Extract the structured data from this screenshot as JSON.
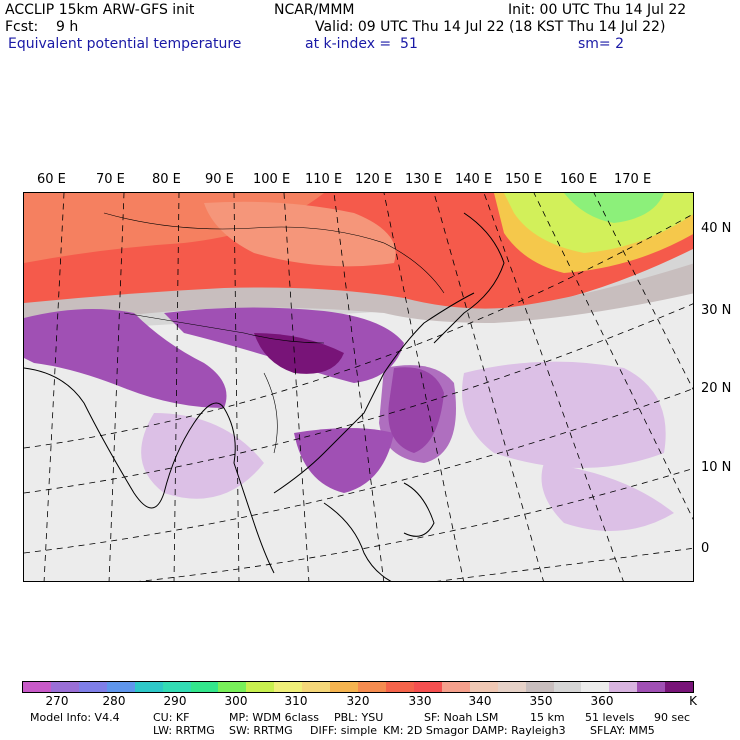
{
  "header": {
    "model_line": "ACCLIP 15km ARW-GFS init",
    "center": "NCAR/MMM",
    "init": "Init: 00 UTC Thu 14 Jul 22",
    "fcst": "Fcst:    9 h",
    "valid": "Valid: 09 UTC Thu 14 Jul 22 (18 KST Thu 14 Jul 22)",
    "field": "Equivalent potential temperature",
    "level": "at k-index =  51",
    "smooth": "sm= 2"
  },
  "map": {
    "lon_labels": [
      "60 E",
      "70 E",
      "80 E",
      "90 E",
      "100 E",
      "110 E",
      "120 E",
      "130 E",
      "140 E",
      "150 E",
      "160 E",
      "170 E"
    ],
    "lat_labels": [
      "40 N",
      "30 N",
      "20 N",
      "10 N",
      "0"
    ]
  },
  "colorbar": {
    "colors": [
      "#c85ac8",
      "#9a6fd6",
      "#7f7fe8",
      "#5f96ec",
      "#2ec8c8",
      "#33dcb4",
      "#33e68c",
      "#78f05a",
      "#c8f050",
      "#f0f07a",
      "#f5d77a",
      "#f5b450",
      "#f58c50",
      "#f5644b",
      "#f55050",
      "#f5a08c",
      "#f0c8b4",
      "#e6d2c8",
      "#c8bebe",
      "#d6d6d6",
      "#ececec",
      "#d8b4e0",
      "#a050b4",
      "#781478"
    ],
    "labels": [
      "270",
      "280",
      "290",
      "300",
      "310",
      "320",
      "330",
      "340",
      "350",
      "360"
    ],
    "unit": "K"
  },
  "footer": {
    "line1": [
      "Model Info: V4.4",
      "CU: KF",
      "MP: WDM 6class",
      "PBL: YSU",
      "SF: Noah LSM",
      "15 km",
      "51 levels",
      "90 sec"
    ],
    "line2": [
      "LW: RRTMG",
      "SW: RRTMG",
      "DIFF: simple",
      "KM: 2D Smagor",
      "DAMP: Rayleigh3",
      "SFLAY: MM5"
    ]
  }
}
